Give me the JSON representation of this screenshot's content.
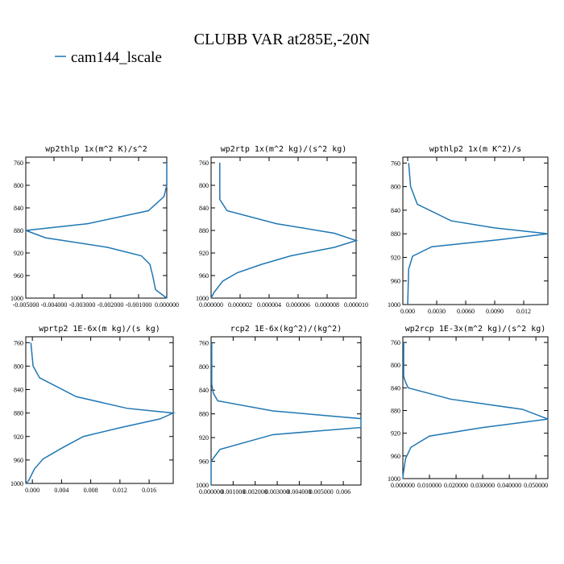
{
  "title": "CLUBB VAR at285E,-20N",
  "legend": {
    "name": "cam144_lscale",
    "color": "#1f77b4"
  },
  "chart_data": [
    {
      "type": "line",
      "title": "wp2thlp  1x(m^2 K)/s^2",
      "y": [
        760,
        800,
        820,
        845,
        868,
        880,
        893,
        910,
        925,
        940,
        960,
        985,
        1000
      ],
      "series": [
        {
          "color": "#1f77b4",
          "values": [
            0,
            0,
            -0.0001,
            -0.00065,
            -0.0028,
            -0.005,
            -0.0043,
            -0.0021,
            -0.0009,
            -0.0006,
            -0.0005,
            -0.0004,
            0
          ]
        }
      ],
      "xlim": [
        -0.005,
        0
      ],
      "ylim": [
        1000,
        750
      ],
      "xticks": [
        {
          "value": -0.005,
          "label": "-0.005000"
        },
        {
          "value": -0.004,
          "label": "-0.004000"
        },
        {
          "value": -0.003,
          "label": "-0.003000"
        },
        {
          "value": -0.002,
          "label": "-0.002000"
        },
        {
          "value": -0.001,
          "label": "-0.001000"
        },
        {
          "value": 0,
          "label": "0.000000"
        }
      ],
      "yticks": [
        760,
        800,
        840,
        880,
        920,
        960,
        1000
      ]
    },
    {
      "type": "line",
      "title": "wp2rtp  1x(m^2 kg)/(s^2 kg)",
      "y": [
        760,
        825,
        845,
        868,
        885,
        898,
        910,
        925,
        940,
        955,
        970,
        990,
        1000
      ],
      "series": [
        {
          "color": "#1f77b4",
          "values": [
            6e-07,
            6e-07,
            1.1e-06,
            4.5e-06,
            8.5e-06,
            1e-05,
            8.5e-06,
            5.5e-06,
            3.5e-06,
            1.8e-06,
            8e-07,
            2e-07,
            0
          ]
        }
      ],
      "xlim": [
        0,
        1e-05
      ],
      "ylim": [
        1000,
        750
      ],
      "xticks": [
        {
          "value": 0,
          "label": "0.000000"
        },
        {
          "value": 2e-06,
          "label": "0.000002"
        },
        {
          "value": 4e-06,
          "label": "0.000004"
        },
        {
          "value": 6e-06,
          "label": "0.000006"
        },
        {
          "value": 8e-06,
          "label": "0.000008"
        },
        {
          "value": 1e-05,
          "label": "0.000010"
        }
      ],
      "yticks": [
        760,
        800,
        840,
        880,
        920,
        960,
        1000
      ]
    },
    {
      "type": "line",
      "title": "wpthlp2  1x(m K^2)/s",
      "y": [
        760,
        800,
        830,
        858,
        870,
        880,
        890,
        902,
        918,
        940,
        1000
      ],
      "series": [
        {
          "color": "#1f77b4",
          "values": [
            0.0001,
            0.0003,
            0.001,
            0.0045,
            0.009,
            0.0145,
            0.0095,
            0.0025,
            0.0005,
            0.0001,
            0
          ]
        }
      ],
      "xlim": [
        -0.0005,
        0.0145
      ],
      "ylim": [
        1000,
        750
      ],
      "xticks": [
        {
          "value": 0,
          "label": "0.000"
        },
        {
          "value": 0.003,
          "label": "0.0030"
        },
        {
          "value": 0.006,
          "label": "0.0060"
        },
        {
          "value": 0.009,
          "label": "0.0090"
        },
        0.012
      ],
      "yticks": [
        760,
        800,
        840,
        880,
        920,
        960,
        1000
      ]
    },
    {
      "type": "line",
      "title": "wprtp2  1E-6x(m kg)/(s kg)",
      "y": [
        760,
        800,
        820,
        852,
        872,
        880,
        890,
        905,
        920,
        940,
        958,
        975,
        995,
        1000
      ],
      "series": [
        {
          "color": "#1f77b4",
          "values": [
            -0.0002,
            0.0001,
            0.001,
            0.006,
            0.013,
            0.0193,
            0.0175,
            0.012,
            0.007,
            0.004,
            0.0015,
            0.0003,
            -0.0005,
            -0.0009
          ]
        }
      ],
      "xlim": [
        -0.0009,
        0.0193
      ],
      "ylim": [
        1000,
        750
      ],
      "xticks": [
        {
          "value": 0,
          "label": "0.000"
        },
        0.004,
        0.008,
        0.012,
        0.016
      ],
      "yticks": [
        760,
        800,
        840,
        880,
        920,
        960,
        1000
      ]
    },
    {
      "type": "line",
      "title": "rcp2  1E-6x(kg^2)/(kg^2)",
      "y": [
        760,
        830,
        845,
        858,
        875,
        888,
        903,
        915,
        940,
        960,
        1000
      ],
      "series": [
        {
          "color": "#1f77b4",
          "values": [
            3e-05,
            3e-05,
            0.0001,
            0.0003,
            0.0028,
            0.0068,
            0.0068,
            0.0028,
            0.0004,
            0,
            0
          ]
        }
      ],
      "xlim": [
        0,
        0.0068
      ],
      "ylim": [
        1000,
        750
      ],
      "xticks": [
        {
          "value": 0,
          "label": "0.000000"
        },
        {
          "value": 0.001,
          "label": "0.001000"
        },
        {
          "value": 0.002,
          "label": "0.002000"
        },
        {
          "value": 0.003,
          "label": "0.003000"
        },
        {
          "value": 0.004,
          "label": "0.004000"
        },
        {
          "value": 0.005,
          "label": "0.005000"
        },
        0.006
      ],
      "yticks": [
        760,
        800,
        840,
        880,
        920,
        960,
        1000
      ]
    },
    {
      "type": "line",
      "title": "wp2rcp  1E-3x(m^2 kg)/(s^2 kg)",
      "y": [
        760,
        820,
        830,
        840,
        860,
        878,
        895,
        910,
        925,
        945,
        965,
        990,
        1000
      ],
      "series": [
        {
          "color": "#1f77b4",
          "values": [
            0.0003,
            0.0003,
            0.001,
            0.002,
            0.018,
            0.045,
            0.0545,
            0.03,
            0.01,
            0.003,
            0.001,
            0.0002,
            0
          ]
        }
      ],
      "xlim": [
        0,
        0.0545
      ],
      "ylim": [
        1000,
        750
      ],
      "xticks": [
        {
          "value": 0,
          "label": "0.000000"
        },
        {
          "value": 0.01,
          "label": "0.010000"
        },
        {
          "value": 0.02,
          "label": "0.020000"
        },
        {
          "value": 0.03,
          "label": "0.030000"
        },
        {
          "value": 0.04,
          "label": "0.040000"
        },
        {
          "value": 0.05,
          "label": "0.050000"
        }
      ],
      "yticks": [
        760,
        800,
        840,
        880,
        920,
        960,
        1000
      ]
    }
  ]
}
